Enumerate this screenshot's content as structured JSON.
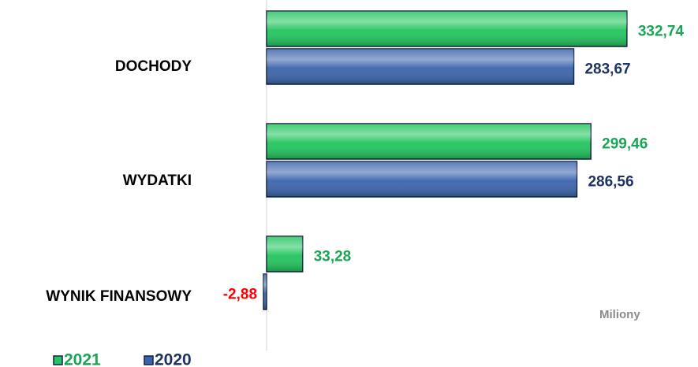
{
  "chart_data": {
    "type": "bar",
    "orientation": "horizontal",
    "categories": [
      "DOCHODY",
      "WYDATKI",
      "WYNIK FINANSOWY"
    ],
    "series": [
      {
        "name": "2021",
        "color": "#22c55e",
        "label_color": "#1aa556",
        "values": [
          332.74,
          299.46,
          33.28
        ],
        "value_labels": [
          "332,74",
          "299,46",
          "33,28"
        ]
      },
      {
        "name": "2020",
        "color": "#3b64ad",
        "label_color": "#1d3461",
        "values": [
          283.67,
          286.56,
          -2.88
        ],
        "value_labels": [
          "283,67",
          "286,56",
          "-2,88"
        ]
      }
    ],
    "negative_label_color": "#ff0000",
    "annotation": "Miliony"
  }
}
